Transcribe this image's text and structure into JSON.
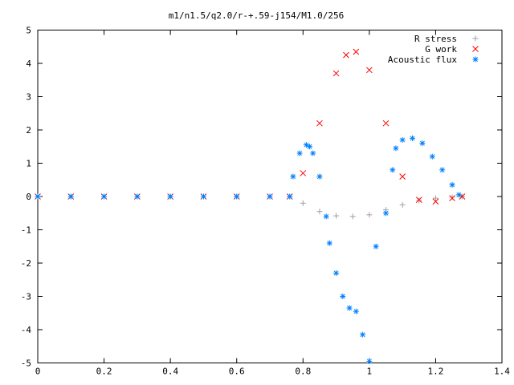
{
  "chart_data": {
    "type": "scatter",
    "title": "m1/n1.5/q2.0/r-+.59-j154/M1.0/256",
    "xlabel": "",
    "ylabel": "",
    "xlim": [
      0,
      1.4
    ],
    "ylim": [
      -5,
      5
    ],
    "x_ticks": [
      "0",
      "0.2",
      "0.4",
      "0.6",
      "0.8",
      "1",
      "1.2",
      "1.4"
    ],
    "y_ticks": [
      "5",
      "4",
      "3",
      "2",
      "1",
      "0",
      "-1",
      "-2",
      "-3",
      "-4",
      "-5"
    ],
    "legend_position": "top-right",
    "series": [
      {
        "name": "R stress",
        "marker": "+",
        "color": "#a0a0a0",
        "x": [
          0.0,
          0.1,
          0.2,
          0.3,
          0.4,
          0.5,
          0.6,
          0.7,
          0.76,
          0.8,
          0.85,
          0.9,
          0.95,
          1.0,
          1.05,
          1.1,
          1.15,
          1.2,
          1.25,
          1.28
        ],
        "y": [
          0,
          0,
          0,
          0,
          0,
          0,
          0,
          0,
          0,
          -0.2,
          -0.45,
          -0.58,
          -0.6,
          -0.55,
          -0.4,
          -0.25,
          -0.12,
          -0.05,
          -0.02,
          0
        ]
      },
      {
        "name": "G work",
        "marker": "x",
        "color": "#ff0000",
        "x": [
          0.0,
          0.1,
          0.2,
          0.3,
          0.4,
          0.5,
          0.6,
          0.7,
          0.76,
          0.8,
          0.85,
          0.9,
          0.93,
          0.96,
          1.0,
          1.05,
          1.1,
          1.15,
          1.2,
          1.25,
          1.28
        ],
        "y": [
          0,
          0,
          0,
          0,
          0,
          0,
          0,
          0,
          0,
          0.7,
          2.2,
          3.7,
          4.25,
          4.35,
          3.8,
          2.2,
          0.6,
          -0.1,
          -0.15,
          -0.05,
          0
        ]
      },
      {
        "name": "Acoustic flux",
        "marker": "*",
        "color": "#0080ff",
        "x": [
          0.0,
          0.1,
          0.2,
          0.3,
          0.4,
          0.5,
          0.6,
          0.7,
          0.76,
          0.77,
          0.79,
          0.81,
          0.82,
          0.83,
          0.85,
          0.87,
          0.88,
          0.9,
          0.92,
          0.94,
          0.96,
          0.98,
          1.0,
          1.02,
          1.05,
          1.07,
          1.08,
          1.1,
          1.13,
          1.16,
          1.19,
          1.22,
          1.25,
          1.27
        ],
        "y": [
          0,
          0,
          0,
          0,
          0,
          0,
          0,
          0,
          0,
          0.6,
          1.3,
          1.55,
          1.5,
          1.3,
          0.6,
          -0.6,
          -1.4,
          -2.3,
          -3.0,
          -3.35,
          -3.45,
          -4.15,
          -4.95,
          -1.5,
          -0.5,
          0.8,
          1.45,
          1.7,
          1.75,
          1.6,
          1.2,
          0.8,
          0.35,
          0.05
        ]
      }
    ]
  }
}
